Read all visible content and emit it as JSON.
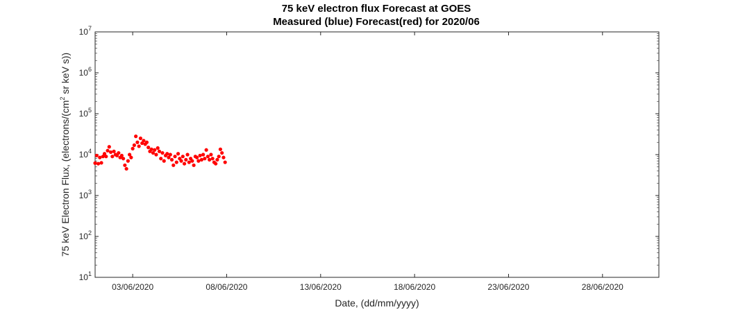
{
  "chart_data": {
    "type": "scatter",
    "title": "75 keV electron flux Forecast at GOES",
    "subtitle": "Measured (blue) Forecast(red) for 2020/06",
    "xlabel": "Date, (dd/mm/yyyy)",
    "ylabel_prefix": "75 keV Electron Flux, (electrons/(cm",
    "ylabel_sup": "2",
    "ylabel_suffix": " sr keV s))",
    "yscale": "log",
    "ylim": [
      10,
      10000000
    ],
    "xlim": [
      "2020-06-01",
      "2020-07-01"
    ],
    "grid": false,
    "y_ticks": [
      {
        "value": 10,
        "base": "10",
        "exp": "1"
      },
      {
        "value": 100,
        "base": "10",
        "exp": "2"
      },
      {
        "value": 1000,
        "base": "10",
        "exp": "3"
      },
      {
        "value": 10000,
        "base": "10",
        "exp": "4"
      },
      {
        "value": 100000,
        "base": "10",
        "exp": "5"
      },
      {
        "value": 1000000,
        "base": "10",
        "exp": "6"
      },
      {
        "value": 10000000,
        "base": "10",
        "exp": "7"
      }
    ],
    "x_ticks": [
      {
        "date": "2020-06-03",
        "label": "03/06/2020"
      },
      {
        "date": "2020-06-08",
        "label": "08/06/2020"
      },
      {
        "date": "2020-06-13",
        "label": "13/06/2020"
      },
      {
        "date": "2020-06-18",
        "label": "18/06/2020"
      },
      {
        "date": "2020-06-23",
        "label": "23/06/2020"
      },
      {
        "date": "2020-06-28",
        "label": "28/06/2020"
      }
    ],
    "series": [
      {
        "color": "#ff0000",
        "marker": "circle",
        "points": [
          [
            "2020-06-01T00:00",
            6200
          ],
          [
            "2020-06-01T02:00",
            9500
          ],
          [
            "2020-06-01T04:00",
            6000
          ],
          [
            "2020-06-01T06:00",
            8500
          ],
          [
            "2020-06-01T08:00",
            6300
          ],
          [
            "2020-06-01T10:00",
            9000
          ],
          [
            "2020-06-01T12:00",
            10500
          ],
          [
            "2020-06-01T14:00",
            9000
          ],
          [
            "2020-06-01T16:00",
            12500
          ],
          [
            "2020-06-01T18:00",
            15500
          ],
          [
            "2020-06-01T20:00",
            11500
          ],
          [
            "2020-06-01T22:00",
            9000
          ],
          [
            "2020-06-02T00:00",
            12000
          ],
          [
            "2020-06-02T02:00",
            10000
          ],
          [
            "2020-06-02T04:00",
            9500
          ],
          [
            "2020-06-02T06:00",
            11000
          ],
          [
            "2020-06-02T08:00",
            8500
          ],
          [
            "2020-06-02T10:00",
            9500
          ],
          [
            "2020-06-02T12:00",
            8000
          ],
          [
            "2020-06-02T14:00",
            5500
          ],
          [
            "2020-06-02T16:00",
            4500
          ],
          [
            "2020-06-02T18:00",
            7000
          ],
          [
            "2020-06-02T20:00",
            10000
          ],
          [
            "2020-06-02T22:00",
            8500
          ],
          [
            "2020-06-03T00:00",
            14000
          ],
          [
            "2020-06-03T02:00",
            17000
          ],
          [
            "2020-06-03T04:00",
            28000
          ],
          [
            "2020-06-03T06:00",
            20000
          ],
          [
            "2020-06-03T08:00",
            16000
          ],
          [
            "2020-06-03T10:00",
            25000
          ],
          [
            "2020-06-03T12:00",
            19000
          ],
          [
            "2020-06-03T14:00",
            22000
          ],
          [
            "2020-06-03T16:00",
            18000
          ],
          [
            "2020-06-03T18:00",
            20000
          ],
          [
            "2020-06-03T20:00",
            15000
          ],
          [
            "2020-06-03T22:00",
            12000
          ],
          [
            "2020-06-04T00:00",
            13500
          ],
          [
            "2020-06-04T02:00",
            11000
          ],
          [
            "2020-06-04T04:00",
            13000
          ],
          [
            "2020-06-04T06:00",
            10000
          ],
          [
            "2020-06-04T08:00",
            14500
          ],
          [
            "2020-06-04T10:00",
            12000
          ],
          [
            "2020-06-04T12:00",
            8000
          ],
          [
            "2020-06-04T14:00",
            11000
          ],
          [
            "2020-06-04T16:00",
            7000
          ],
          [
            "2020-06-04T18:00",
            9500
          ],
          [
            "2020-06-04T20:00",
            10500
          ],
          [
            "2020-06-04T22:00",
            8500
          ],
          [
            "2020-06-05T00:00",
            10000
          ],
          [
            "2020-06-05T02:00",
            7500
          ],
          [
            "2020-06-05T04:00",
            5500
          ],
          [
            "2020-06-05T06:00",
            9000
          ],
          [
            "2020-06-05T08:00",
            6500
          ],
          [
            "2020-06-05T10:00",
            10500
          ],
          [
            "2020-06-05T12:00",
            8000
          ],
          [
            "2020-06-05T14:00",
            7000
          ],
          [
            "2020-06-05T16:00",
            9000
          ],
          [
            "2020-06-05T18:00",
            6000
          ],
          [
            "2020-06-05T20:00",
            7500
          ],
          [
            "2020-06-05T22:00",
            10000
          ],
          [
            "2020-06-06T00:00",
            6500
          ],
          [
            "2020-06-06T02:00",
            8000
          ],
          [
            "2020-06-06T04:00",
            7000
          ],
          [
            "2020-06-06T06:00",
            5500
          ],
          [
            "2020-06-06T08:00",
            9000
          ],
          [
            "2020-06-06T10:00",
            8500
          ],
          [
            "2020-06-06T12:00",
            7000
          ],
          [
            "2020-06-06T14:00",
            9500
          ],
          [
            "2020-06-06T16:00",
            7500
          ],
          [
            "2020-06-06T18:00",
            10000
          ],
          [
            "2020-06-06T20:00",
            8000
          ],
          [
            "2020-06-06T22:00",
            13000
          ],
          [
            "2020-06-07T00:00",
            9000
          ],
          [
            "2020-06-07T02:00",
            7500
          ],
          [
            "2020-06-07T04:00",
            10000
          ],
          [
            "2020-06-07T06:00",
            8000
          ],
          [
            "2020-06-07T08:00",
            6500
          ],
          [
            "2020-06-07T10:00",
            6000
          ],
          [
            "2020-06-07T12:00",
            7500
          ],
          [
            "2020-06-07T14:00",
            9000
          ],
          [
            "2020-06-07T16:00",
            13500
          ],
          [
            "2020-06-07T18:00",
            11000
          ],
          [
            "2020-06-07T20:00",
            8500
          ],
          [
            "2020-06-07T22:00",
            6500
          ]
        ]
      }
    ]
  }
}
